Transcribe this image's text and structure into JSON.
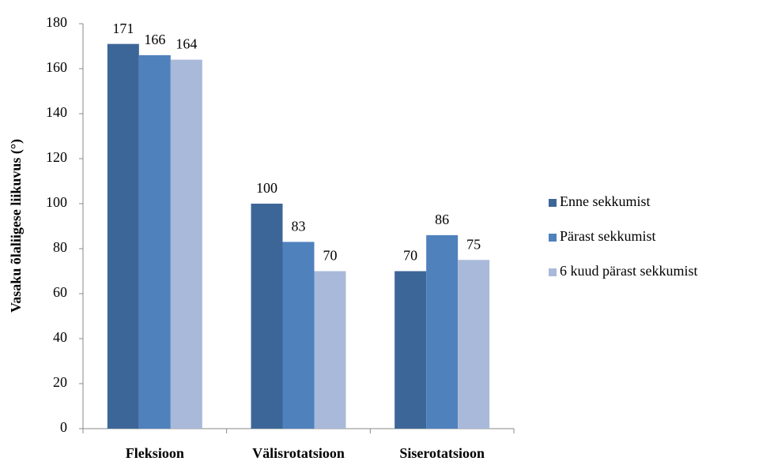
{
  "chart_data": {
    "type": "bar",
    "y_label": "Vasaku õlaliigese liikuvus (°)",
    "categories": [
      "Fleksioon",
      "Välisrotatsioon",
      "Siserotatsioon"
    ],
    "series": [
      {
        "name": "Enne sekkumist",
        "color": "#3d6698",
        "values": [
          171,
          100,
          70
        ]
      },
      {
        "name": "Pärast sekkumist",
        "color": "#4f81bd",
        "values": [
          166,
          83,
          86
        ]
      },
      {
        "name": "6 kuud pärast sekkumist",
        "color": "#a9b9d9",
        "values": [
          164,
          70,
          75
        ]
      }
    ],
    "ylim": [
      0,
      180
    ],
    "yticks": [
      0,
      20,
      40,
      60,
      80,
      100,
      120,
      140,
      160,
      180
    ],
    "grid": false,
    "legend": "right"
  }
}
